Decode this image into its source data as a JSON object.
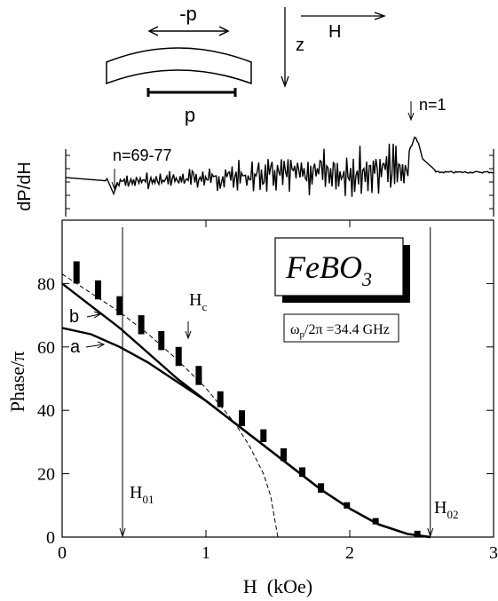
{
  "diagram": {
    "minus_p_label": "-p",
    "p_label": "p",
    "z_label": "z",
    "H_label": "H"
  },
  "dpdh_panel": {
    "ylabel": "dP/dH",
    "annot_left": "n=69-77",
    "annot_right": "n=1"
  },
  "chart_data": {
    "type": "line",
    "xlabel": "H  (kOe)",
    "ylabel": "Phase/π",
    "xlim": [
      0,
      3
    ],
    "ylim": [
      0,
      100
    ],
    "x_ticks": [
      0,
      1,
      2,
      3
    ],
    "y_ticks": [
      0,
      20,
      40,
      60,
      80
    ],
    "grid": false,
    "series": [
      {
        "name": "a",
        "style": "solid",
        "x": [
          0,
          0.2,
          0.4,
          0.6,
          0.8,
          1.0,
          1.2,
          1.4,
          1.6,
          1.8,
          2.0,
          2.2,
          2.4,
          2.56
        ],
        "y": [
          66,
          64,
          60,
          55,
          49,
          43,
          36,
          29,
          22,
          15,
          9,
          4,
          1,
          0
        ]
      },
      {
        "name": "b",
        "style": "solid",
        "x": [
          0,
          0.2,
          0.4,
          0.6,
          0.8,
          1.0,
          1.2,
          1.4,
          1.6,
          1.8,
          2.0,
          2.2,
          2.4,
          2.56
        ],
        "y": [
          80,
          73,
          66,
          58,
          50,
          43,
          36,
          29,
          22,
          15,
          9,
          4,
          1,
          0
        ]
      },
      {
        "style": "dashed",
        "x": [
          0,
          0.2,
          0.4,
          0.6,
          0.8,
          1.0,
          1.2,
          1.3,
          1.4,
          1.45,
          1.5
        ],
        "y": [
          83,
          77,
          71,
          64,
          56,
          47,
          36,
          29,
          20,
          13,
          0
        ]
      }
    ],
    "data_bars": [
      {
        "x": 0.1,
        "y_low": 80,
        "y_high": 87
      },
      {
        "x": 0.25,
        "y_low": 75,
        "y_high": 81
      },
      {
        "x": 0.4,
        "y_low": 70,
        "y_high": 76
      },
      {
        "x": 0.55,
        "y_low": 64,
        "y_high": 70
      },
      {
        "x": 0.69,
        "y_low": 59,
        "y_high": 65
      },
      {
        "x": 0.81,
        "y_low": 54,
        "y_high": 60
      },
      {
        "x": 0.95,
        "y_low": 48,
        "y_high": 54
      },
      {
        "x": 1.1,
        "y_low": 41,
        "y_high": 46
      },
      {
        "x": 1.25,
        "y_low": 35,
        "y_high": 40
      },
      {
        "x": 1.4,
        "y_low": 30,
        "y_high": 34
      },
      {
        "x": 1.54,
        "y_low": 24,
        "y_high": 28
      },
      {
        "x": 1.67,
        "y_low": 19,
        "y_high": 22
      },
      {
        "x": 1.8,
        "y_low": 14,
        "y_high": 17
      },
      {
        "x": 1.98,
        "y_low": 9,
        "y_high": 11
      },
      {
        "x": 2.18,
        "y_low": 4,
        "y_high": 6
      },
      {
        "x": 2.47,
        "y_low": 0,
        "y_high": 2
      }
    ],
    "vlines": [
      {
        "x": 0.42,
        "label": "H01"
      },
      {
        "x": 2.56,
        "label": "H02"
      }
    ],
    "hc_marker": {
      "x": 0.87,
      "label": "Hc"
    },
    "curve_labels": {
      "a": "a",
      "b": "b"
    },
    "legend_box": "FeBO3",
    "freq_label": "ωp/2π =34.4 GHz"
  }
}
